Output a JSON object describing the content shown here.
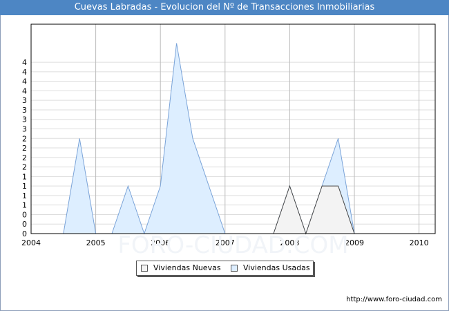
{
  "page": {
    "title": "Cuevas Labradas - Evolucion del Nº de Transacciones Inmobiliarias",
    "url": "http://www.foro-ciudad.com",
    "watermark": "FORO-CIUDAD.COM"
  },
  "chart_data": {
    "type": "area",
    "title": "Cuevas Labradas - Evolucion del Nº de Transacciones Inmobiliarias",
    "xlabel": "",
    "ylabel": "",
    "xlim": [
      2004,
      2010.25
    ],
    "ylim": [
      0,
      4.4
    ],
    "x_ticks": [
      "2004",
      "2005",
      "2006",
      "2007",
      "2008",
      "2009",
      "2010"
    ],
    "y_tick_labels": [
      "0",
      "0",
      "0",
      "1",
      "1",
      "1",
      "1",
      "2",
      "2",
      "2",
      "2",
      "3",
      "3",
      "3",
      "3",
      "4",
      "4",
      "4",
      "4"
    ],
    "y_tick_step": 0.2,
    "grid": true,
    "legend_position": "bottom-center",
    "series": [
      {
        "name": "Viviendas Usadas",
        "color": "#ddeeff",
        "line_color": "#7aa3d8",
        "points": [
          [
            2004.5,
            0
          ],
          [
            2004.75,
            2
          ],
          [
            2005,
            0
          ],
          [
            2005.25,
            0
          ],
          [
            2005.5,
            1
          ],
          [
            2005.75,
            0
          ],
          [
            2006,
            1
          ],
          [
            2006.25,
            4
          ],
          [
            2006.5,
            2
          ],
          [
            2007,
            0
          ],
          [
            2007.75,
            0
          ],
          [
            2008,
            1
          ],
          [
            2008.25,
            0
          ],
          [
            2008.5,
            1
          ],
          [
            2008.75,
            2
          ],
          [
            2009,
            0
          ]
        ]
      },
      {
        "name": "Viviendas Nuevas",
        "color": "#f3f3f3",
        "line_color": "#444444",
        "points": [
          [
            2007.75,
            0
          ],
          [
            2008,
            1
          ],
          [
            2008.25,
            0
          ],
          [
            2008.5,
            1
          ],
          [
            2008.75,
            1
          ],
          [
            2009,
            0
          ]
        ]
      }
    ]
  },
  "legend": {
    "items": [
      {
        "label": "Viviendas Nuevas",
        "color": "#f3f3f3"
      },
      {
        "label": "Viviendas Usadas",
        "color": "#ddeeff"
      }
    ]
  }
}
